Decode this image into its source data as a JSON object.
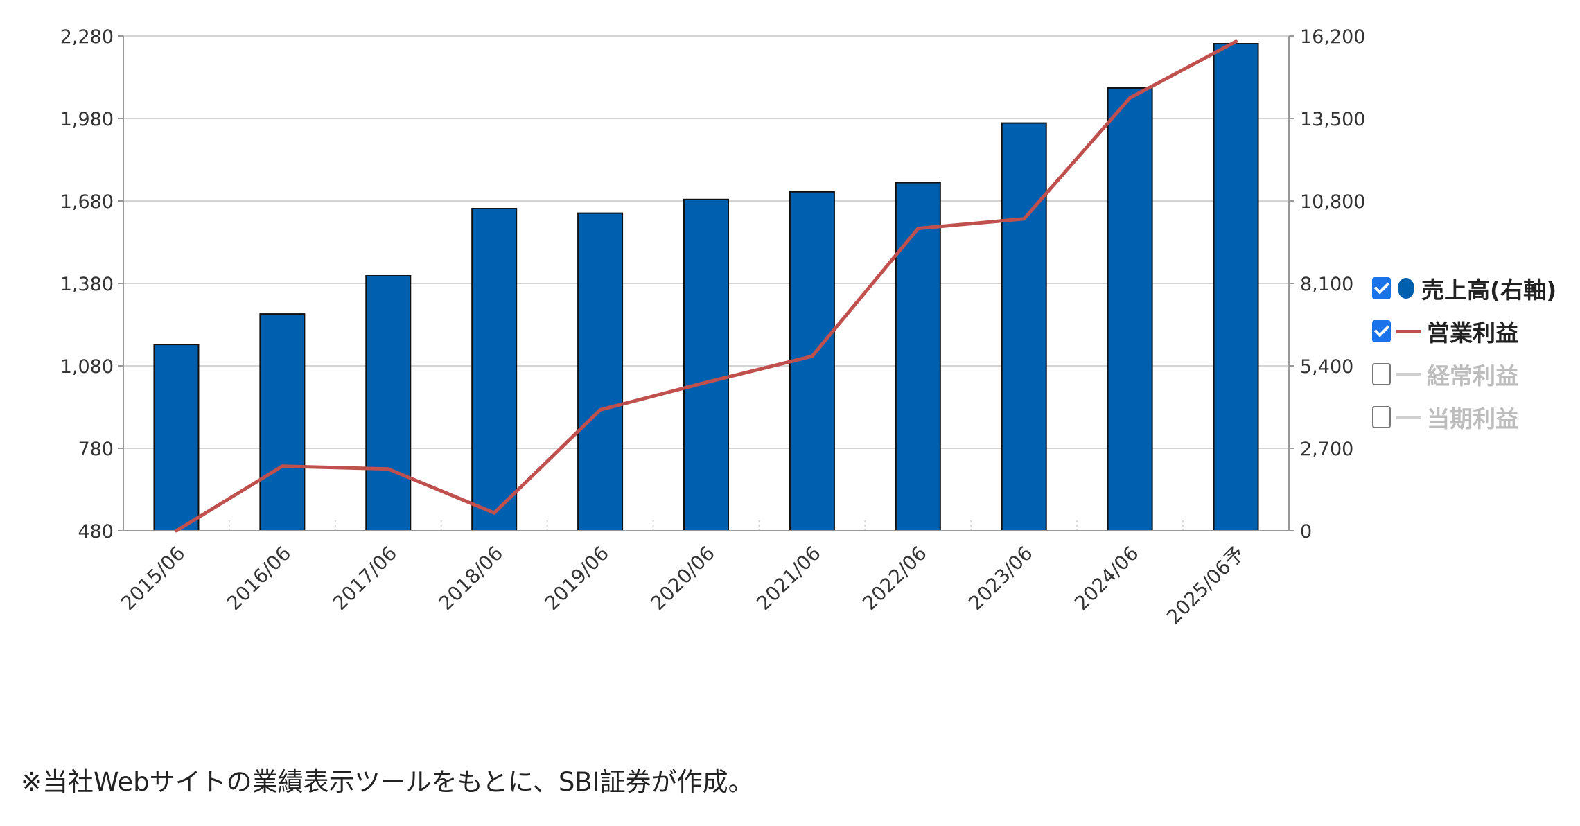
{
  "chart_data": {
    "type": "bar",
    "categories": [
      "2015/06",
      "2016/06",
      "2017/06",
      "2018/06",
      "2019/06",
      "2020/06",
      "2021/06",
      "2022/06",
      "2023/06",
      "2024/06",
      "2025/06予"
    ],
    "y_left": {
      "ticks": [
        "480",
        "780",
        "1,080",
        "1,380",
        "1,680",
        "1,980",
        "2,280"
      ],
      "range": [
        480,
        2280
      ]
    },
    "y_right": {
      "ticks": [
        "0",
        "2,700",
        "5,400",
        "8,100",
        "10,800",
        "13,500",
        "16,200"
      ],
      "range": [
        0,
        16200
      ]
    },
    "series": [
      {
        "name": "売上高(右軸)",
        "type": "bar",
        "axis": "right",
        "color": "#0060b0",
        "values": [
          6100,
          7100,
          8350,
          10550,
          10400,
          10850,
          11100,
          11400,
          13350,
          14500,
          15950
        ]
      },
      {
        "name": "営業利益",
        "type": "line",
        "axis": "left",
        "color": "#c0504d",
        "values": [
          480,
          715,
          705,
          545,
          920,
          1020,
          1115,
          1580,
          1615,
          2055,
          2260
        ]
      }
    ],
    "grid": true,
    "legend_position": "right"
  },
  "legend": [
    {
      "label": "売上高(右軸)",
      "checked": true,
      "marker": "dot",
      "color": "#0060b0"
    },
    {
      "label": "営業利益",
      "checked": true,
      "marker": "line",
      "color": "#c0504d"
    },
    {
      "label": "経常利益",
      "checked": false,
      "marker": "line",
      "color": "#d0d0d0"
    },
    {
      "label": "当期利益",
      "checked": false,
      "marker": "line",
      "color": "#d0d0d0"
    }
  ],
  "note": "※当社Webサイトの業績表示ツールをもとに、SBI証券が作成。"
}
